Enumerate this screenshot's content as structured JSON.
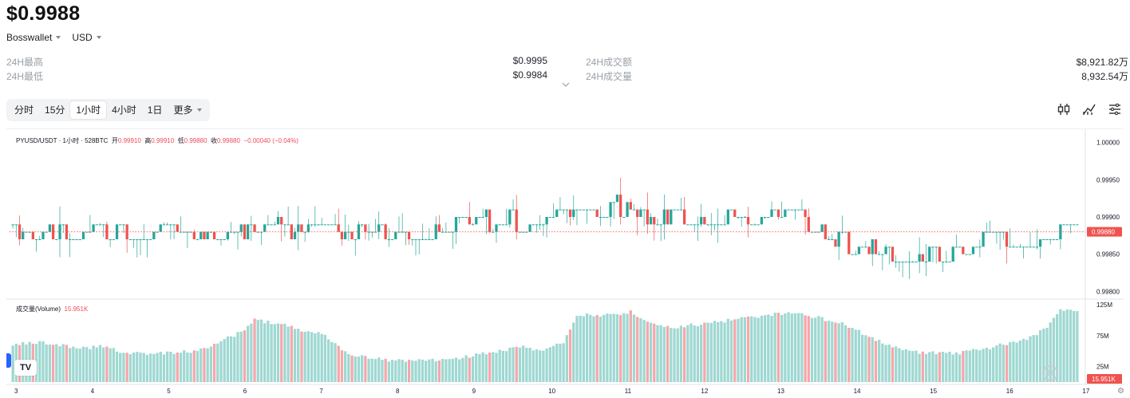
{
  "header": {
    "price": "$0.9988",
    "wallet": "Bosswallet",
    "currency": "USD"
  },
  "stats": {
    "high_label": "24H最高",
    "high_value": "$0.9995",
    "low_label": "24H最低",
    "low_value": "$0.9984",
    "turnover_label": "24H成交额",
    "turnover_value": "$8,921.82万",
    "volume_label": "24H成交量",
    "volume_value": "8,932.54万"
  },
  "intervals": [
    "分时",
    "15分",
    "1小时",
    "4小时",
    "1日"
  ],
  "active_interval": "1小时",
  "more_label": "更多",
  "icons": [
    "indicators-icon",
    "chart-type-icon",
    "settings-lines-icon"
  ],
  "chart_data": {
    "type": "candlestick",
    "symbol_line": "PYUSD/USDT · 1小时 · 528BTC",
    "ohlc_text": {
      "open_label": "开",
      "open": "0.99910",
      "high_label": "高",
      "high": "0.99910",
      "low_label": "低",
      "low": "0.99880",
      "close_label": "收",
      "close": "0.99880",
      "change": "−0.00040 (−0.04%)"
    },
    "last_price_tag": "0.99880",
    "y_ticks": [
      "1.00000",
      "0.99950",
      "0.99900",
      "0.99850",
      "0.99800"
    ],
    "ylim": [
      0.99795,
      1.00005
    ],
    "x_ticks": [
      "3",
      "4",
      "5",
      "6",
      "7",
      "8",
      "9",
      "10",
      "11",
      "12",
      "13",
      "14",
      "15",
      "16",
      "17"
    ],
    "volume_label": "成交量(Volume)",
    "volume_value": "15.951K",
    "volume_ticks": [
      "125M",
      "75M",
      "25M"
    ],
    "volume_last_tag": "15.951K",
    "vol_max": 125,
    "candle_count": 318,
    "volume_profile": [
      [
        0,
        60
      ],
      [
        8,
        64
      ],
      [
        14,
        60
      ],
      [
        20,
        55
      ],
      [
        26,
        57
      ],
      [
        30,
        52
      ],
      [
        34,
        47
      ],
      [
        40,
        45
      ],
      [
        50,
        48
      ],
      [
        56,
        52
      ],
      [
        62,
        66
      ],
      [
        68,
        80
      ],
      [
        72,
        100
      ],
      [
        80,
        94
      ],
      [
        86,
        84
      ],
      [
        92,
        78
      ],
      [
        100,
        46
      ],
      [
        110,
        36
      ],
      [
        118,
        33
      ],
      [
        126,
        36
      ],
      [
        134,
        40
      ],
      [
        140,
        46
      ],
      [
        146,
        52
      ],
      [
        152,
        56
      ],
      [
        158,
        52
      ],
      [
        164,
        63
      ],
      [
        168,
        108
      ],
      [
        178,
        108
      ],
      [
        184,
        113
      ],
      [
        190,
        94
      ],
      [
        196,
        88
      ],
      [
        204,
        93
      ],
      [
        212,
        99
      ],
      [
        218,
        103
      ],
      [
        224,
        108
      ],
      [
        232,
        113
      ],
      [
        240,
        104
      ],
      [
        248,
        93
      ],
      [
        254,
        76
      ],
      [
        262,
        58
      ],
      [
        270,
        48
      ],
      [
        280,
        46
      ],
      [
        288,
        52
      ],
      [
        296,
        62
      ],
      [
        304,
        73
      ],
      [
        308,
        90
      ],
      [
        312,
        116
      ],
      [
        318,
        113
      ]
    ],
    "price_profile": [
      [
        0,
        0.9988
      ],
      [
        20,
        0.9988
      ],
      [
        40,
        0.99878
      ],
      [
        60,
        0.9988
      ],
      [
        80,
        0.99885
      ],
      [
        100,
        0.9988
      ],
      [
        120,
        0.9988
      ],
      [
        140,
        0.99895
      ],
      [
        160,
        0.999
      ],
      [
        175,
        0.99915
      ],
      [
        200,
        0.99895
      ],
      [
        230,
        0.99905
      ],
      [
        250,
        0.9986
      ],
      [
        270,
        0.99845
      ],
      [
        285,
        0.9986
      ],
      [
        300,
        0.99875
      ],
      [
        318,
        0.9988
      ]
    ]
  }
}
